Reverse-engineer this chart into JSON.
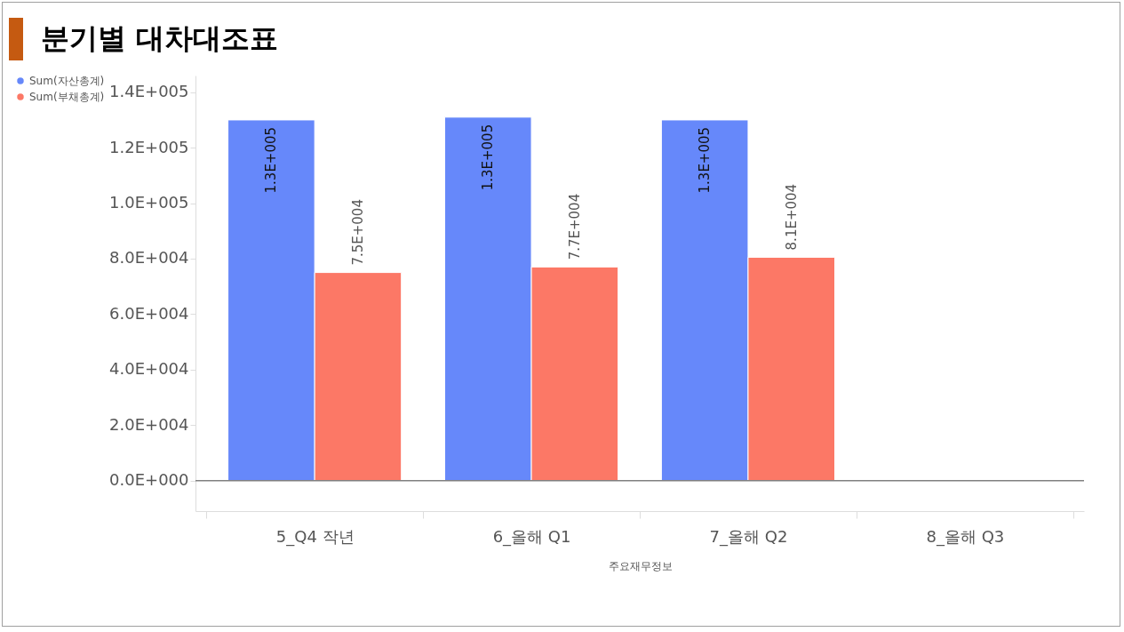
{
  "chart_data": {
    "type": "bar",
    "title": "분기별 대차대조표",
    "categories": [
      "5_Q4 작년",
      "6_올해 Q1",
      "7_올해 Q2",
      "8_올해 Q3"
    ],
    "series": [
      {
        "name": "Sum(자산총계)",
        "color": "#6688fa",
        "values": [
          130000,
          131000,
          130000,
          null
        ],
        "value_labels": [
          "1.3E+005",
          "1.3E+005",
          "1.3E+005",
          null
        ]
      },
      {
        "name": "Sum(부채총계)",
        "color": "#fc7866",
        "values": [
          75000,
          77000,
          80500,
          null
        ],
        "value_labels": [
          "7.5E+004",
          "7.7E+004",
          "8.1E+004",
          null
        ]
      }
    ],
    "xlabel": "주요재무정보",
    "ylim": [
      -11000,
      146000
    ],
    "yticks": [
      {
        "value": 0,
        "label": "0.0E+000"
      },
      {
        "value": 20000,
        "label": "2.0E+004"
      },
      {
        "value": 40000,
        "label": "4.0E+004"
      },
      {
        "value": 60000,
        "label": "6.0E+004"
      },
      {
        "value": 80000,
        "label": "8.0E+004"
      },
      {
        "value": 100000,
        "label": "1.0E+005"
      },
      {
        "value": 120000,
        "label": "1.2E+005"
      },
      {
        "value": 140000,
        "label": "1.4E+005"
      }
    ],
    "ref_lines": [
      {
        "axis": "y",
        "value": 0,
        "color": "#808080"
      }
    ],
    "grid": false,
    "legend": "left"
  }
}
